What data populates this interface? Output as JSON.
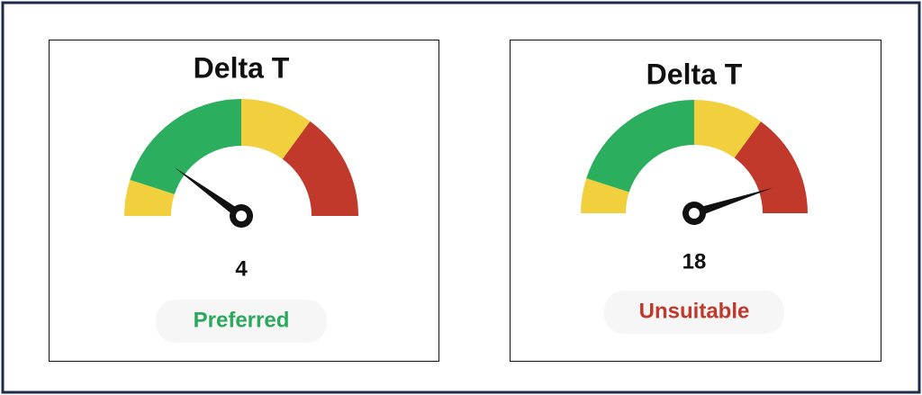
{
  "chart_data": [
    {
      "type": "gauge",
      "title": "Delta T",
      "value": 4,
      "status": "Preferred",
      "status_color": "#2aa85c",
      "range": [
        0,
        20
      ],
      "bands": [
        {
          "from": 0,
          "to": 2,
          "color": "#f2cf3c"
        },
        {
          "from": 2,
          "to": 10,
          "color": "#2bae5e"
        },
        {
          "from": 10,
          "to": 14,
          "color": "#f2cf3c"
        },
        {
          "from": 14,
          "to": 20,
          "color": "#c0392b"
        }
      ]
    },
    {
      "type": "gauge",
      "title": "Delta T",
      "value": 18,
      "status": "Unsuitable",
      "status_color": "#c0392b",
      "range": [
        0,
        20
      ],
      "bands": [
        {
          "from": 0,
          "to": 2,
          "color": "#f2cf3c"
        },
        {
          "from": 2,
          "to": 10,
          "color": "#2bae5e"
        },
        {
          "from": 10,
          "to": 14,
          "color": "#f2cf3c"
        },
        {
          "from": 14,
          "to": 20,
          "color": "#c0392b"
        }
      ]
    }
  ]
}
